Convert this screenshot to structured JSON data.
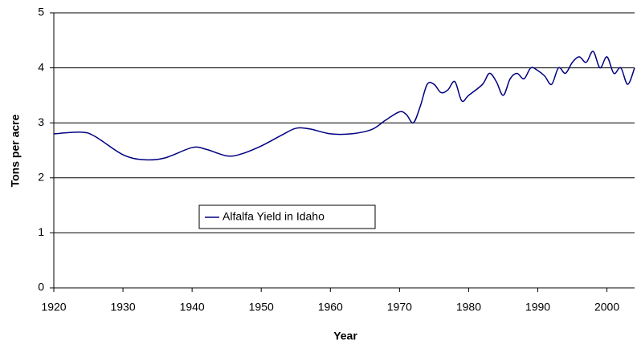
{
  "chart_data": {
    "type": "line",
    "xlabel": "Year",
    "ylabel": "Tons per acre",
    "x": [
      1920,
      1924,
      1926,
      1930,
      1933,
      1936,
      1940,
      1942,
      1945,
      1947,
      1950,
      1953,
      1955,
      1957,
      1960,
      1963,
      1966,
      1968,
      1970,
      1971,
      1972,
      1973,
      1974,
      1975,
      1976,
      1977,
      1978,
      1979,
      1980,
      1982,
      1983,
      1984,
      1985,
      1986,
      1987,
      1988,
      1989,
      1990,
      1991,
      1992,
      1993,
      1994,
      1995,
      1996,
      1997,
      1998,
      1999,
      2000,
      2001,
      2002,
      2003,
      2004
    ],
    "series": [
      {
        "name": "Alfalfa Yield in Idaho",
        "color": "#000080",
        "values": [
          2.8,
          2.83,
          2.75,
          2.42,
          2.33,
          2.36,
          2.55,
          2.52,
          2.4,
          2.43,
          2.58,
          2.78,
          2.9,
          2.89,
          2.8,
          2.8,
          2.88,
          3.05,
          3.2,
          3.15,
          3.0,
          3.3,
          3.7,
          3.7,
          3.55,
          3.6,
          3.75,
          3.4,
          3.5,
          3.7,
          3.9,
          3.75,
          3.5,
          3.8,
          3.9,
          3.8,
          4.0,
          3.95,
          3.85,
          3.7,
          4.0,
          3.9,
          4.1,
          4.2,
          4.1,
          4.3,
          4.0,
          4.2,
          3.9,
          4.0,
          3.7,
          4.0
        ]
      }
    ],
    "xlim": [
      1920,
      2004
    ],
    "xticks": [
      1920,
      1930,
      1940,
      1950,
      1960,
      1970,
      1980,
      1990,
      2000
    ],
    "ylim": [
      0,
      5
    ],
    "yticks": [
      0,
      1,
      2,
      3,
      4,
      5
    ],
    "grid": true,
    "legend": "center"
  }
}
